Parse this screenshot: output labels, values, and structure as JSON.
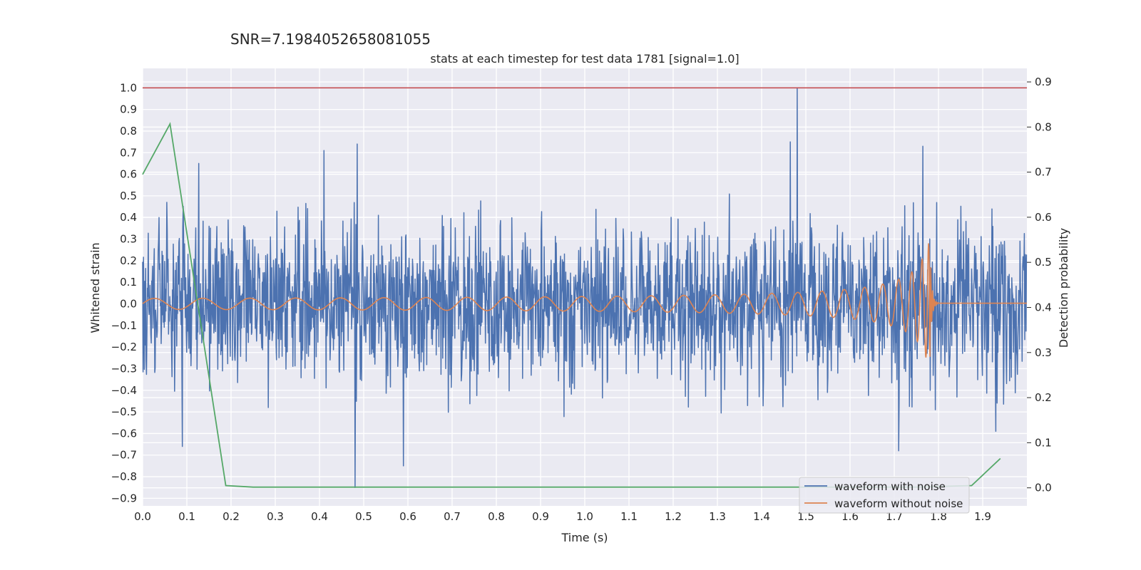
{
  "chart_data": {
    "type": "line",
    "suptitle": "SNR=7.1984052658081055",
    "title": "stats at each timestep for test data 1781 [signal=1.0]",
    "xlabel": "Time (s)",
    "ylabel": "Whitened strain",
    "y2label": "Detection probability",
    "xlim": [
      0.0,
      2.0
    ],
    "ylim": [
      -0.935,
      1.09
    ],
    "y2lim": [
      -0.04,
      0.93
    ],
    "xticks": [
      "0.0",
      "0.1",
      "0.2",
      "0.3",
      "0.4",
      "0.5",
      "0.6",
      "0.7",
      "0.8",
      "0.9",
      "1.0",
      "1.1",
      "1.2",
      "1.3",
      "1.4",
      "1.5",
      "1.6",
      "1.7",
      "1.8",
      "1.9"
    ],
    "yticks": [
      "1.0",
      "0.9",
      "0.8",
      "0.7",
      "0.6",
      "0.5",
      "0.4",
      "0.3",
      "0.2",
      "0.1",
      "0.0",
      "−0.1",
      "−0.2",
      "−0.3",
      "−0.4",
      "−0.5",
      "−0.6",
      "−0.7",
      "−0.8",
      "−0.9"
    ],
    "y2ticks": [
      "0.9",
      "0.8",
      "0.7",
      "0.6",
      "0.5",
      "0.4",
      "0.3",
      "0.2",
      "0.1",
      "0.0"
    ],
    "grid": true,
    "legend_position": "lower-right",
    "colors": {
      "noisy": "#4c72b0",
      "clean": "#dd8452",
      "probability": "#55a868",
      "threshold": "#c44e52",
      "background": "#eaeaf2"
    },
    "series": [
      {
        "name": "waveform with noise",
        "noise_amplitude": 0.2,
        "peaks": [
          {
            "x": 1.48,
            "y": 1.0
          },
          {
            "x": 0.48,
            "y": -0.85
          },
          {
            "x": 0.485,
            "y": 0.74
          },
          {
            "x": 0.41,
            "y": 0.71
          },
          {
            "x": 1.465,
            "y": 0.75
          },
          {
            "x": 1.765,
            "y": 0.73
          },
          {
            "x": 0.127,
            "y": 0.65
          },
          {
            "x": 0.09,
            "y": -0.66
          },
          {
            "x": 0.59,
            "y": -0.75
          },
          {
            "x": 1.71,
            "y": -0.68
          },
          {
            "x": 1.93,
            "y": -0.59
          },
          {
            "x": 0.055,
            "y": 0.47
          }
        ]
      },
      {
        "name": "waveform without noise",
        "chirp_start_freq_hz": 9,
        "chirp_merger_s": 1.78,
        "amplitude_start": 0.015,
        "amplitude_peak": 0.32
      },
      {
        "name": "detection probability",
        "axis": "right",
        "x": [
          0.0,
          0.062,
          0.188,
          0.25,
          0.5,
          0.75,
          1.0,
          1.25,
          1.5,
          1.75,
          1.875,
          1.94
        ],
        "y": [
          0.695,
          0.807,
          0.005,
          0.0015,
          0.0015,
          0.0015,
          0.0015,
          0.0015,
          0.0015,
          0.0015,
          0.005,
          0.065
        ]
      },
      {
        "name": "threshold",
        "axis": "left",
        "y": 1.0
      }
    ]
  }
}
